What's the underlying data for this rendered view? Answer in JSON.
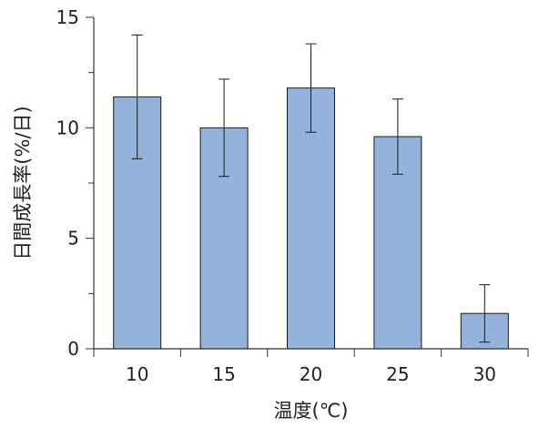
{
  "chart_data": {
    "type": "bar",
    "title": "",
    "xlabel": "温度(℃)",
    "ylabel": "日間成長率(%/日)",
    "categories": [
      "10",
      "15",
      "20",
      "25",
      "30"
    ],
    "values": [
      11.4,
      10.0,
      11.8,
      9.6,
      1.6
    ],
    "error_upper": [
      14.2,
      12.2,
      13.8,
      11.3,
      2.9
    ],
    "error_lower": [
      8.6,
      7.8,
      9.8,
      7.9,
      0.3
    ],
    "ylim": [
      0,
      15
    ],
    "yticks": [
      "0",
      "5",
      "10",
      "15"
    ],
    "grid": false,
    "legend": "none",
    "colors": {
      "bar": "#93b3dd",
      "bar_edge": "#1a1a1a",
      "axis": "#333333"
    }
  }
}
